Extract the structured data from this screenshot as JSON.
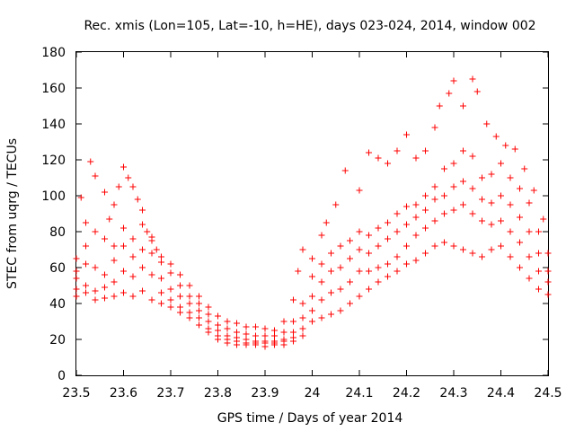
{
  "chart_data": {
    "type": "scatter",
    "title": "Rec. xmis (Lon=105, Lat=-10, h=HE), days 023-024, 2014, window 002",
    "xlabel": "GPS time / Days of year 2014",
    "ylabel": "STEC from uqrg / TECUs",
    "xlim": [
      23.5,
      24.5
    ],
    "ylim": [
      0,
      180
    ],
    "x_ticks": [
      "23.5",
      "23.6",
      "23.7",
      "23.8",
      "23.9",
      "24",
      "24.1",
      "24.2",
      "24.3",
      "24.4",
      "24.5"
    ],
    "y_ticks": [
      "0",
      "20",
      "40",
      "60",
      "80",
      "100",
      "120",
      "140",
      "160",
      "180"
    ],
    "marker": "+",
    "color": "#ff0000",
    "grid": false,
    "legend": "none",
    "series": [
      {
        "values": [
          [
            23.5,
            65
          ],
          [
            23.51,
            99
          ],
          [
            23.52,
            85
          ],
          [
            23.53,
            119
          ],
          [
            23.54,
            111
          ],
          [
            23.56,
            102
          ],
          [
            23.57,
            87
          ],
          [
            23.58,
            95
          ],
          [
            23.59,
            105
          ],
          [
            23.6,
            116
          ],
          [
            23.61,
            110
          ],
          [
            23.62,
            105
          ],
          [
            23.63,
            98
          ],
          [
            23.64,
            92
          ],
          [
            23.65,
            80
          ],
          [
            23.66,
            75
          ],
          [
            23.67,
            70
          ],
          [
            23.68,
            66
          ],
          [
            23.7,
            62
          ],
          [
            23.72,
            56
          ],
          [
            23.74,
            50
          ],
          [
            23.76,
            44
          ],
          [
            23.78,
            38
          ],
          [
            23.8,
            33
          ],
          [
            23.82,
            30
          ],
          [
            23.84,
            29
          ],
          [
            23.86,
            27
          ],
          [
            23.88,
            27
          ],
          [
            23.9,
            26
          ],
          [
            23.92,
            25
          ],
          [
            23.94,
            30
          ],
          [
            23.96,
            42
          ],
          [
            23.97,
            58
          ],
          [
            23.98,
            70
          ],
          [
            24.0,
            65
          ],
          [
            24.02,
            78
          ],
          [
            24.03,
            85
          ],
          [
            24.05,
            95
          ],
          [
            24.07,
            114
          ],
          [
            24.1,
            103
          ],
          [
            24.12,
            124
          ],
          [
            24.14,
            121
          ],
          [
            24.16,
            118
          ],
          [
            24.18,
            125
          ],
          [
            24.2,
            134
          ],
          [
            24.22,
            121
          ],
          [
            24.24,
            125
          ],
          [
            24.26,
            138
          ],
          [
            24.27,
            150
          ],
          [
            24.29,
            157
          ],
          [
            24.3,
            164
          ],
          [
            24.32,
            150
          ],
          [
            24.34,
            165
          ],
          [
            24.35,
            158
          ],
          [
            24.37,
            140
          ],
          [
            24.39,
            133
          ],
          [
            24.41,
            128
          ],
          [
            24.43,
            126
          ],
          [
            24.45,
            115
          ],
          [
            24.47,
            103
          ],
          [
            24.49,
            87
          ]
        ]
      },
      {
        "values": [
          [
            23.5,
            58
          ],
          [
            23.52,
            72
          ],
          [
            23.54,
            80
          ],
          [
            23.56,
            76
          ],
          [
            23.58,
            72
          ],
          [
            23.6,
            82
          ],
          [
            23.62,
            76
          ],
          [
            23.64,
            84
          ],
          [
            23.66,
            77
          ],
          [
            23.68,
            63
          ],
          [
            23.7,
            57
          ],
          [
            23.72,
            50
          ],
          [
            23.74,
            44
          ],
          [
            23.76,
            40
          ],
          [
            23.78,
            34
          ],
          [
            23.8,
            28
          ],
          [
            23.82,
            26
          ],
          [
            23.84,
            24
          ],
          [
            23.86,
            23
          ],
          [
            23.88,
            22
          ],
          [
            23.9,
            22
          ],
          [
            23.92,
            22
          ],
          [
            23.94,
            24
          ],
          [
            23.96,
            30
          ],
          [
            23.98,
            40
          ],
          [
            24.0,
            55
          ],
          [
            24.02,
            62
          ],
          [
            24.04,
            68
          ],
          [
            24.06,
            72
          ],
          [
            24.08,
            75
          ],
          [
            24.1,
            80
          ],
          [
            24.12,
            78
          ],
          [
            24.14,
            82
          ],
          [
            24.16,
            85
          ],
          [
            24.18,
            90
          ],
          [
            24.2,
            94
          ],
          [
            24.22,
            95
          ],
          [
            24.24,
            100
          ],
          [
            24.26,
            105
          ],
          [
            24.28,
            115
          ],
          [
            24.3,
            118
          ],
          [
            24.32,
            125
          ],
          [
            24.34,
            122
          ],
          [
            24.36,
            110
          ],
          [
            24.38,
            112
          ],
          [
            24.4,
            118
          ],
          [
            24.42,
            110
          ],
          [
            24.44,
            104
          ],
          [
            24.46,
            96
          ],
          [
            24.48,
            80
          ],
          [
            24.5,
            68
          ]
        ]
      },
      {
        "values": [
          [
            23.5,
            54
          ],
          [
            23.52,
            62
          ],
          [
            23.54,
            60
          ],
          [
            23.56,
            56
          ],
          [
            23.58,
            64
          ],
          [
            23.6,
            72
          ],
          [
            23.62,
            66
          ],
          [
            23.64,
            70
          ],
          [
            23.66,
            68
          ],
          [
            23.68,
            54
          ],
          [
            23.7,
            48
          ],
          [
            23.72,
            44
          ],
          [
            23.74,
            40
          ],
          [
            23.76,
            36
          ],
          [
            23.78,
            30
          ],
          [
            23.8,
            25
          ],
          [
            23.82,
            22
          ],
          [
            23.84,
            21
          ],
          [
            23.86,
            20
          ],
          [
            23.88,
            19
          ],
          [
            23.9,
            19
          ],
          [
            23.92,
            19
          ],
          [
            23.94,
            20
          ],
          [
            23.96,
            24
          ],
          [
            23.98,
            32
          ],
          [
            24.0,
            44
          ],
          [
            24.02,
            52
          ],
          [
            24.04,
            58
          ],
          [
            24.06,
            60
          ],
          [
            24.08,
            65
          ],
          [
            24.1,
            70
          ],
          [
            24.12,
            68
          ],
          [
            24.14,
            72
          ],
          [
            24.16,
            76
          ],
          [
            24.18,
            80
          ],
          [
            24.2,
            84
          ],
          [
            24.22,
            88
          ],
          [
            24.24,
            92
          ],
          [
            24.26,
            98
          ],
          [
            24.28,
            100
          ],
          [
            24.3,
            105
          ],
          [
            24.32,
            108
          ],
          [
            24.34,
            104
          ],
          [
            24.36,
            98
          ],
          [
            24.38,
            96
          ],
          [
            24.4,
            100
          ],
          [
            24.42,
            95
          ],
          [
            24.44,
            88
          ],
          [
            24.46,
            80
          ],
          [
            24.48,
            68
          ],
          [
            24.5,
            58
          ]
        ]
      },
      {
        "values": [
          [
            23.5,
            48
          ],
          [
            23.52,
            50
          ],
          [
            23.54,
            47
          ],
          [
            23.56,
            49
          ],
          [
            23.58,
            52
          ],
          [
            23.6,
            58
          ],
          [
            23.62,
            55
          ],
          [
            23.64,
            60
          ],
          [
            23.66,
            56
          ],
          [
            23.68,
            46
          ],
          [
            23.7,
            42
          ],
          [
            23.72,
            38
          ],
          [
            23.74,
            35
          ],
          [
            23.76,
            32
          ],
          [
            23.78,
            26
          ],
          [
            23.8,
            22
          ],
          [
            23.82,
            20
          ],
          [
            23.84,
            19
          ],
          [
            23.86,
            18
          ],
          [
            23.88,
            18
          ],
          [
            23.9,
            18
          ],
          [
            23.92,
            18
          ],
          [
            23.94,
            19
          ],
          [
            23.96,
            21
          ],
          [
            23.98,
            26
          ],
          [
            24.0,
            36
          ],
          [
            24.02,
            42
          ],
          [
            24.04,
            46
          ],
          [
            24.06,
            48
          ],
          [
            24.08,
            52
          ],
          [
            24.1,
            58
          ],
          [
            24.12,
            58
          ],
          [
            24.14,
            60
          ],
          [
            24.16,
            62
          ],
          [
            24.18,
            66
          ],
          [
            24.2,
            72
          ],
          [
            24.22,
            78
          ],
          [
            24.24,
            82
          ],
          [
            24.26,
            86
          ],
          [
            24.28,
            90
          ],
          [
            24.3,
            92
          ],
          [
            24.32,
            95
          ],
          [
            24.34,
            90
          ],
          [
            24.36,
            86
          ],
          [
            24.38,
            84
          ],
          [
            24.4,
            86
          ],
          [
            24.42,
            80
          ],
          [
            24.44,
            74
          ],
          [
            24.46,
            66
          ],
          [
            24.48,
            58
          ],
          [
            24.5,
            52
          ]
        ]
      },
      {
        "values": [
          [
            23.5,
            44
          ],
          [
            23.52,
            46
          ],
          [
            23.54,
            42
          ],
          [
            23.56,
            43
          ],
          [
            23.58,
            44
          ],
          [
            23.6,
            46
          ],
          [
            23.62,
            44
          ],
          [
            23.64,
            47
          ],
          [
            23.66,
            42
          ],
          [
            23.68,
            40
          ],
          [
            23.7,
            38
          ],
          [
            23.72,
            35
          ],
          [
            23.74,
            32
          ],
          [
            23.76,
            28
          ],
          [
            23.78,
            24
          ],
          [
            23.8,
            20
          ],
          [
            23.82,
            18
          ],
          [
            23.84,
            17
          ],
          [
            23.86,
            17
          ],
          [
            23.88,
            17
          ],
          [
            23.9,
            16
          ],
          [
            23.92,
            17
          ],
          [
            23.94,
            17
          ],
          [
            23.96,
            19
          ],
          [
            23.98,
            22
          ],
          [
            24.0,
            30
          ],
          [
            24.02,
            32
          ],
          [
            24.04,
            34
          ],
          [
            24.06,
            36
          ],
          [
            24.08,
            40
          ],
          [
            24.1,
            44
          ],
          [
            24.12,
            48
          ],
          [
            24.14,
            52
          ],
          [
            24.16,
            55
          ],
          [
            24.18,
            58
          ],
          [
            24.2,
            62
          ],
          [
            24.22,
            64
          ],
          [
            24.24,
            68
          ],
          [
            24.26,
            72
          ],
          [
            24.28,
            74
          ],
          [
            24.3,
            72
          ],
          [
            24.32,
            70
          ],
          [
            24.34,
            68
          ],
          [
            24.36,
            66
          ],
          [
            24.38,
            70
          ],
          [
            24.4,
            72
          ],
          [
            24.42,
            66
          ],
          [
            24.44,
            60
          ],
          [
            24.46,
            54
          ],
          [
            24.48,
            48
          ],
          [
            24.5,
            45
          ]
        ]
      }
    ]
  }
}
